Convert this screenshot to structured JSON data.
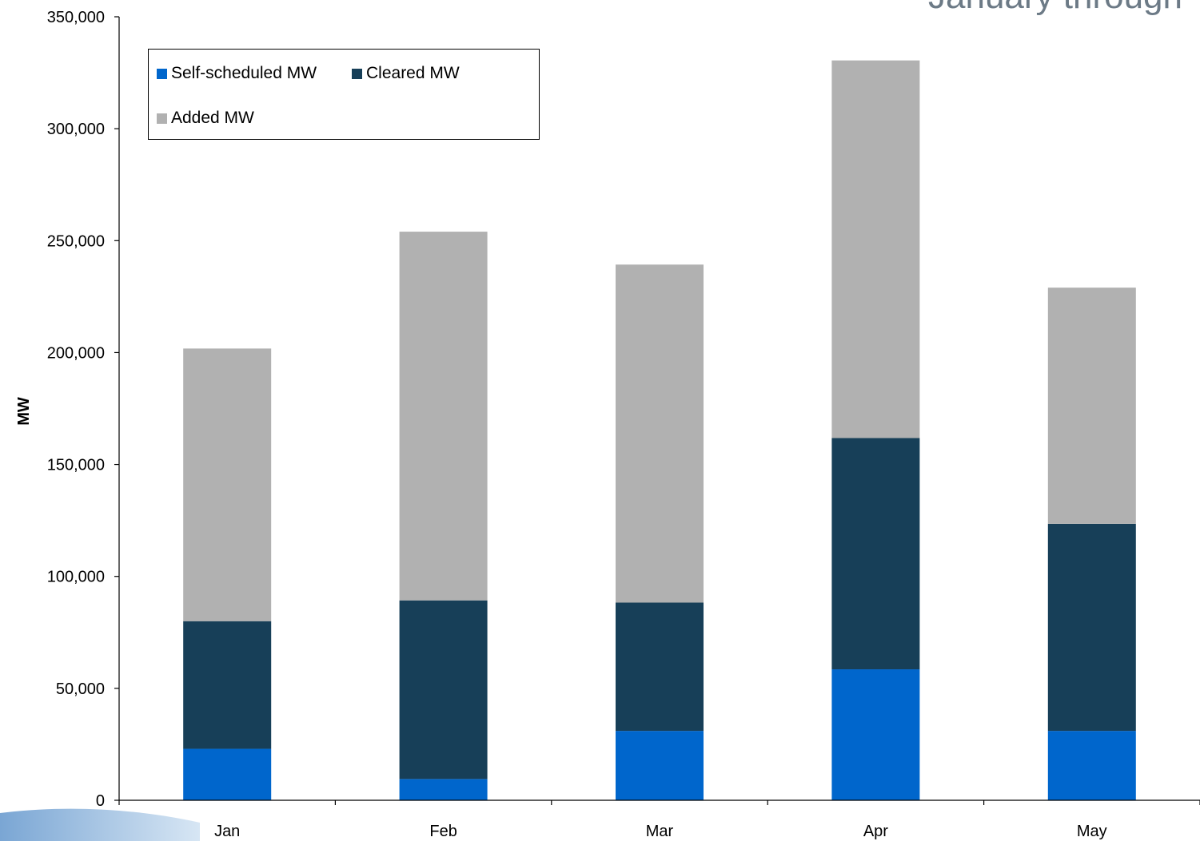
{
  "page": {
    "title_fragment": "January through"
  },
  "chart_data": {
    "type": "bar",
    "stacked": true,
    "categories": [
      "Jan",
      "Feb",
      "Mar",
      "Apr",
      "May"
    ],
    "series": [
      {
        "name": "Self-scheduled MW",
        "color": "#0066cc",
        "values": [
          23000,
          9500,
          31000,
          58500,
          31000
        ]
      },
      {
        "name": "Cleared MW",
        "color": "#173f58",
        "values": [
          57000,
          79800,
          57300,
          103300,
          92500
        ]
      },
      {
        "name": "Added MW",
        "color": "#b1b1b1",
        "values": [
          121800,
          164700,
          151000,
          168700,
          105500
        ]
      }
    ],
    "ylabel": "MW",
    "xlabel": "",
    "ylim": [
      0,
      350000
    ],
    "yticks": [
      0,
      50000,
      100000,
      150000,
      200000,
      250000,
      300000,
      350000
    ],
    "ytick_labels": [
      "0",
      "50,000",
      "100,000",
      "150,000",
      "200,000",
      "250,000",
      "300,000",
      "350,000"
    ],
    "grid": false,
    "legend_position": "top-left"
  }
}
